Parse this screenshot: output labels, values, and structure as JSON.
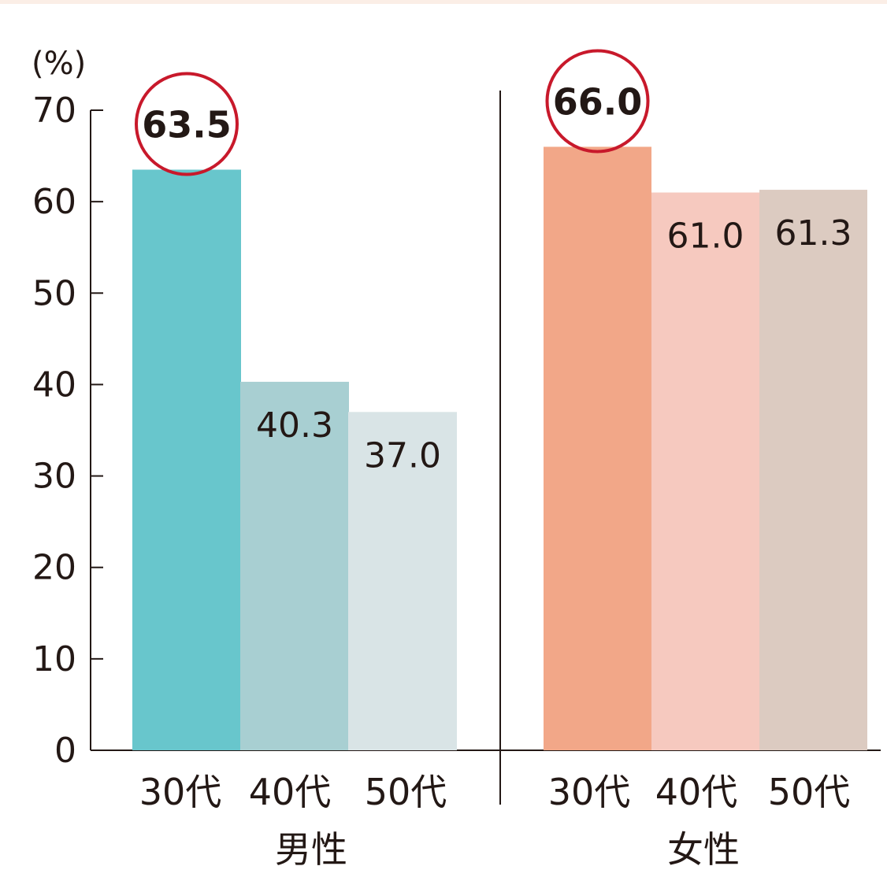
{
  "chart_data": {
    "type": "bar",
    "ylabel": "(%)",
    "ylim": [
      0,
      70
    ],
    "yticks": [
      0,
      10,
      20,
      30,
      40,
      50,
      60,
      70
    ],
    "grid": false,
    "groups": [
      {
        "name": "男性",
        "categories": [
          "30代",
          "40代",
          "50代"
        ],
        "values": [
          63.5,
          40.3,
          37.0
        ],
        "labels": [
          "63.5",
          "40.3",
          "37.0"
        ],
        "colors": [
          "#68c6cc",
          "#a8cfd2",
          "#d9e4e6"
        ],
        "highlight": 0
      },
      {
        "name": "女性",
        "categories": [
          "30代",
          "40代",
          "50代"
        ],
        "values": [
          66.0,
          61.0,
          61.3
        ],
        "labels": [
          "66.0",
          "61.0",
          "61.3"
        ],
        "colors": [
          "#f2a788",
          "#f6c9bf",
          "#dccbc1"
        ],
        "highlight": 0
      }
    ],
    "highlight_color": "#c8192b"
  }
}
